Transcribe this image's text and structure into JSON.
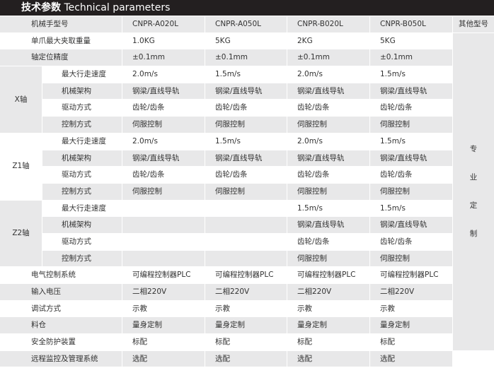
{
  "title": {
    "cn": "技术参数",
    "en": "Technical parameters"
  },
  "header": {
    "label": "机械手型号",
    "models": [
      "CNPR-A020L",
      "CNPR-A050L",
      "CNPR-B020L",
      "CNPR-B050L"
    ],
    "other": "其他型号"
  },
  "other_note": [
    "专",
    "业",
    "定",
    "制"
  ],
  "rows_top": [
    {
      "label": "单爪最大夹取重量",
      "values": [
        "1.0KG",
        "5KG",
        "2KG",
        "5KG"
      ]
    },
    {
      "label": "轴定位精度",
      "values": [
        "±0.1mm",
        "±0.1mm",
        "±0.1mm",
        "±0.1mm"
      ]
    }
  ],
  "groups": [
    {
      "name": "X轴",
      "rows": [
        {
          "label": "最大行走速度",
          "values": [
            "2.0m/s",
            "1.5m/s",
            "2.0m/s",
            "1.5m/s"
          ]
        },
        {
          "label": "机械架构",
          "values": [
            "钢梁/直线导轨",
            "钢梁/直线导轨",
            "钢梁/直线导轨",
            "钢梁/直线导轨"
          ]
        },
        {
          "label": "驱动方式",
          "values": [
            "齿轮/齿条",
            "齿轮/齿条",
            "齿轮/齿条",
            "齿轮/齿条"
          ]
        },
        {
          "label": "控制方式",
          "values": [
            "伺服控制",
            "伺服控制",
            "伺服控制",
            "伺服控制"
          ]
        }
      ]
    },
    {
      "name": "Z1轴",
      "rows": [
        {
          "label": "最大行走速度",
          "values": [
            "2.0m/s",
            "1.5m/s",
            "2.0m/s",
            "1.5m/s"
          ]
        },
        {
          "label": "机械架构",
          "values": [
            "钢梁/直线导轨",
            "钢梁/直线导轨",
            "钢梁/直线导轨",
            "钢梁/直线导轨"
          ]
        },
        {
          "label": "驱动方式",
          "values": [
            "齿轮/齿条",
            "齿轮/齿条",
            "齿轮/齿条",
            "齿轮/齿条"
          ]
        },
        {
          "label": "控制方式",
          "values": [
            "伺服控制",
            "伺服控制",
            "伺服控制",
            "伺服控制"
          ]
        }
      ]
    },
    {
      "name": "Z2轴",
      "rows": [
        {
          "label": "最大行走速度",
          "values": [
            "",
            "",
            "1.5m/s",
            "1.5m/s"
          ]
        },
        {
          "label": "机械架构",
          "values": [
            "",
            "",
            "钢梁/直线导轨",
            "钢梁/直线导轨"
          ]
        },
        {
          "label": "驱动方式",
          "values": [
            "",
            "",
            "齿轮/齿条",
            "齿轮/齿条"
          ]
        },
        {
          "label": "控制方式",
          "values": [
            "",
            "",
            "伺服控制",
            "伺服控制"
          ]
        }
      ]
    }
  ],
  "rows_bottom": [
    {
      "label": "电气控制系统",
      "values": [
        "可编程控制器PLC",
        "可编程控制器PLC",
        "可编程控制器PLC",
        "可编程控制器PLC"
      ]
    },
    {
      "label": "输入电压",
      "values": [
        "二相220V",
        "二相220V",
        "二相220V",
        "二相220V"
      ]
    },
    {
      "label": "调试方式",
      "values": [
        "示教",
        "示教",
        "示教",
        "示教"
      ]
    },
    {
      "label": "料仓",
      "values": [
        "量身定制",
        "量身定制",
        "量身定制",
        "量身定制"
      ]
    },
    {
      "label": "安全防护装置",
      "values": [
        "标配",
        "标配",
        "标配",
        "标配"
      ]
    },
    {
      "label": "远程监控及管理系统",
      "values": [
        "选配",
        "选配",
        "选配",
        "选配"
      ]
    }
  ]
}
